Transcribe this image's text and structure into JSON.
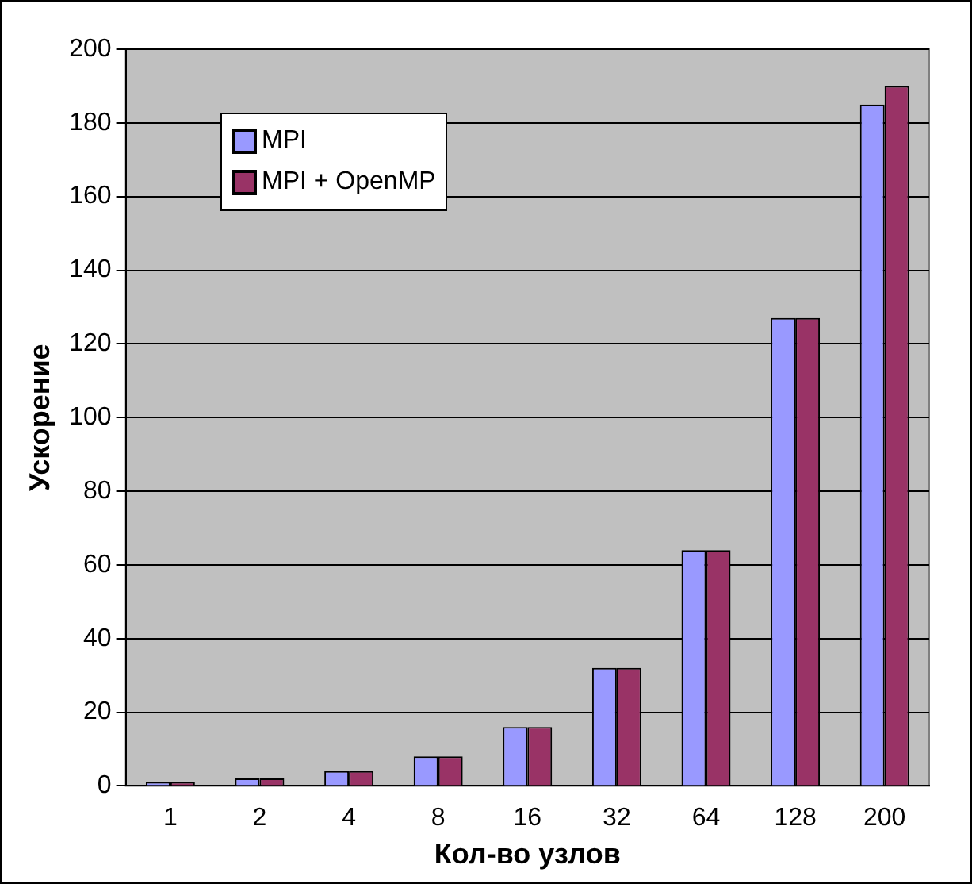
{
  "chart_data": {
    "type": "bar",
    "xlabel": "Кол-во узлов",
    "ylabel": "Ускорение",
    "categories": [
      "1",
      "2",
      "4",
      "8",
      "16",
      "32",
      "64",
      "128",
      "200"
    ],
    "series": [
      {
        "name": "MPI",
        "color": "#9999ff",
        "values": [
          1,
          2,
          4,
          8,
          16,
          32,
          64,
          127,
          185
        ]
      },
      {
        "name": "MPI + OpenMP",
        "color": "#993366",
        "values": [
          1,
          2,
          4,
          8,
          16,
          32,
          64,
          127,
          190
        ]
      }
    ],
    "ylim": [
      0,
      200
    ],
    "yticks": [
      0,
      20,
      40,
      60,
      80,
      100,
      120,
      140,
      160,
      180,
      200
    ],
    "grid": "y",
    "legend": "top left"
  }
}
